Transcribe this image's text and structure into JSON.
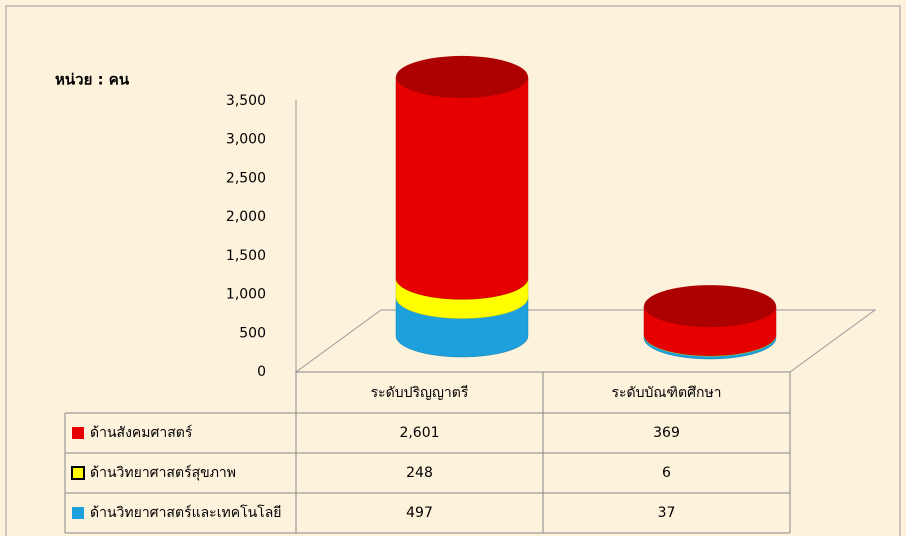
{
  "chart_data": {
    "type": "bar3d",
    "y_label": "หน่วย : คน",
    "categories": [
      "ระดับปริญญาตรี",
      "ระดับบัณฑิตศึกษา"
    ],
    "series": [
      {
        "name": "ด้านสังคมศาสตร์",
        "color": "#e60000",
        "values": [
          2601,
          369
        ],
        "value_labels": [
          "2,601",
          "369"
        ]
      },
      {
        "name": "ด้านวิทยาศาสตร์สุขภาพ",
        "color": "#ffff00",
        "values": [
          248,
          6
        ]
      },
      {
        "name": "ด้านวิทยาศาสตร์และเทคโนโลยี",
        "color": "#1ea0dc",
        "values": [
          497,
          37
        ]
      }
    ],
    "stack_order": [
      2,
      1,
      0
    ],
    "ylim": [
      0,
      3500
    ],
    "yticks": [
      0,
      500,
      {
        "value": 1000,
        "label": "1,000"
      },
      {
        "value": 1500,
        "label": "1,500"
      },
      {
        "value": 2000,
        "label": "2,000"
      },
      {
        "value": 2500,
        "label": "2,500"
      },
      {
        "value": 3000,
        "label": "3,000"
      },
      {
        "value": 3500,
        "label": "3,500"
      }
    ],
    "grid": false
  }
}
